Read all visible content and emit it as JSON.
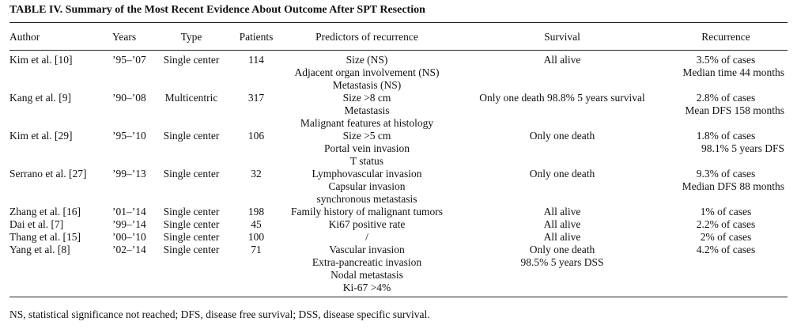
{
  "caption": "TABLE IV. Summary of the Most Recent Evidence About Outcome After SPT Resection",
  "headers": {
    "author": "Author",
    "years": "Years",
    "type": "Type",
    "patients": "Patients",
    "predictors": "Predictors of recurrence",
    "survival": "Survival",
    "recurrence": "Recurrence"
  },
  "rows": [
    {
      "author": "Kim et al. [10]",
      "years": "’95–’07",
      "type": "Single center",
      "patients": "114",
      "predictors": [
        "Size (NS)",
        "Adjacent organ involvement (NS)",
        "Metastasis (NS)"
      ],
      "survival": [
        "All alive"
      ],
      "recurrence": [
        "3.5% of cases",
        "Median time 44 months"
      ]
    },
    {
      "author": "Kang et al. [9]",
      "years": "’90–’08",
      "type": "Multicentric",
      "patients": "317",
      "predictors": [
        "Size >8 cm",
        "Metastasis",
        "Malignant features at histology"
      ],
      "survival": [
        "Only one death 98.8% 5 years survival"
      ],
      "recurrence": [
        "2.8% of cases",
        "Mean DFS 158 months"
      ]
    },
    {
      "author": "Kim et al. [29]",
      "years": "’95–’10",
      "type": "Single center",
      "patients": "106",
      "predictors": [
        "Size >5 cm",
        "Portal vein invasion",
        "T status"
      ],
      "survival": [
        "Only one death"
      ],
      "recurrence": [
        "1.8% of cases",
        "98.1% 5 years DFS"
      ]
    },
    {
      "author": "Serrano et al. [27]",
      "years": "’99–’13",
      "type": "Single center",
      "patients": "32",
      "predictors": [
        "Lymphovascular invasion",
        "Capsular invasion",
        "synchronous metastasis"
      ],
      "survival": [
        "Only one death"
      ],
      "recurrence": [
        "9.3% of cases",
        "Median DFS 88 months"
      ]
    },
    {
      "author": "Zhang et al. [16]",
      "years": "’01–’14",
      "type": "Single center",
      "patients": "198",
      "predictors": [
        "Family history of malignant tumors"
      ],
      "survival": [
        "All alive"
      ],
      "recurrence": [
        "1% of cases"
      ]
    },
    {
      "author": "Dai et al. [7]",
      "years": "’99–’14",
      "type": "Single center",
      "patients": "45",
      "predictors": [
        "Ki67 positive rate"
      ],
      "survival": [
        "All alive"
      ],
      "recurrence": [
        "2.2% of cases"
      ]
    },
    {
      "author": "Thang et al. [15]",
      "years": "’00–’10",
      "type": "Single center",
      "patients": "100",
      "predictors": [
        "/"
      ],
      "survival": [
        "All alive"
      ],
      "recurrence": [
        "2% of cases"
      ]
    },
    {
      "author": "Yang et al. [8]",
      "years": "’02–’14",
      "type": "Single center",
      "patients": "71",
      "predictors": [
        "Vascular invasion",
        "Extra-pancreatic invasion",
        "Nodal metastasis",
        "Ki-67 >4%"
      ],
      "survival": [
        "Only one death",
        "98.5% 5 years DSS"
      ],
      "recurrence": [
        "4.2% of cases"
      ]
    }
  ],
  "footnote": "NS, statistical significance not reached; DFS, disease free survival; DSS, disease specific survival."
}
